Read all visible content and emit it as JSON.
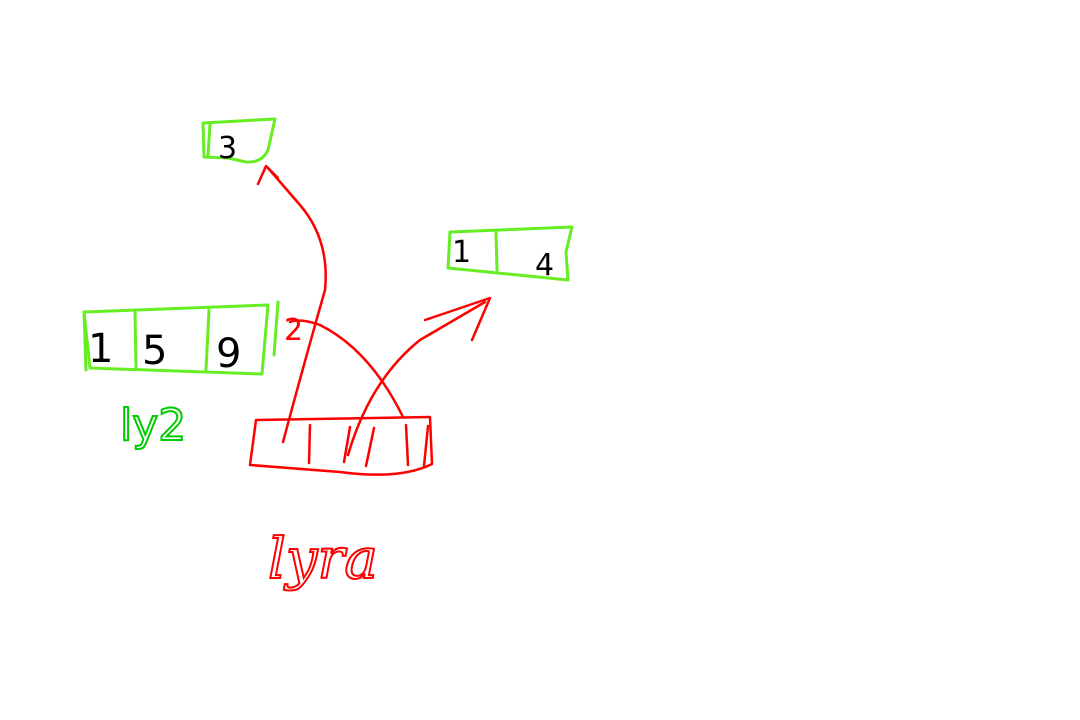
{
  "colors": {
    "background": "#ffffff",
    "bucket_outline": "#66ee22",
    "root_outline": "#ff0000",
    "ink": "#000000"
  },
  "leaf_left": {
    "values": [
      "1",
      "5",
      "9"
    ],
    "label": "ly2",
    "pointer_mark": "2"
  },
  "leaf_top": {
    "values": [
      "3"
    ]
  },
  "leaf_right": {
    "values": [
      "1",
      "4"
    ]
  },
  "root": {
    "label": "lyra"
  }
}
